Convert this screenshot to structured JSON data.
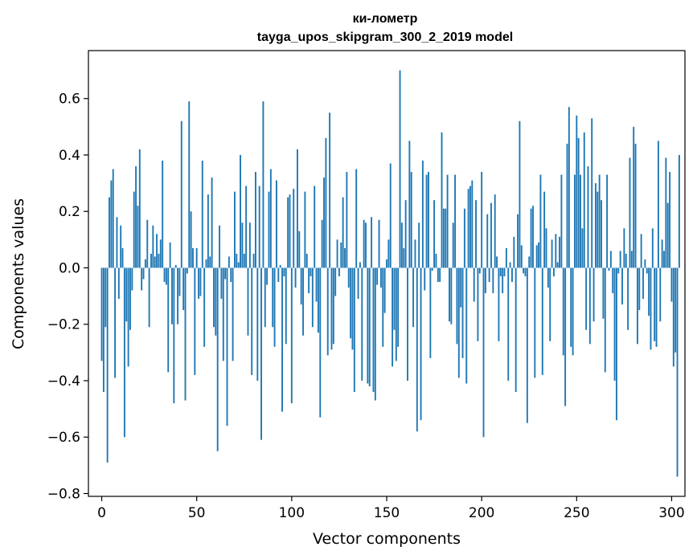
{
  "chart_data": {
    "type": "bar",
    "title": "ки-лометр",
    "subtitle": "tayga_upos_skipgram_300_2_2019 model",
    "xlabel": "Vector components",
    "ylabel": "Components values",
    "xlim": [
      -7,
      307
    ],
    "ylim": [
      -0.81,
      0.77
    ],
    "xticks": [
      0,
      50,
      100,
      150,
      200,
      250,
      300
    ],
    "xtick_labels": [
      "0",
      "50",
      "100",
      "150",
      "200",
      "250",
      "300"
    ],
    "yticks": [
      -0.8,
      -0.6,
      -0.4,
      -0.2,
      0.0,
      0.2,
      0.4,
      0.6
    ],
    "ytick_labels": [
      "−0.8",
      "−0.6",
      "−0.4",
      "−0.2",
      "0.0",
      "0.2",
      "0.4",
      "0.6"
    ],
    "grid": false,
    "color": "#1f77b4",
    "values": [
      -0.33,
      -0.44,
      -0.21,
      -0.69,
      0.25,
      0.31,
      0.35,
      -0.39,
      0.18,
      -0.11,
      0.15,
      0.07,
      -0.6,
      -0.19,
      -0.35,
      -0.22,
      -0.08,
      0.27,
      0.36,
      0.22,
      0.42,
      -0.08,
      -0.04,
      0.03,
      0.17,
      -0.21,
      0.05,
      0.15,
      0.04,
      0.12,
      0.05,
      0.1,
      0.38,
      -0.05,
      -0.06,
      -0.37,
      0.09,
      -0.2,
      -0.48,
      0.01,
      -0.2,
      -0.1,
      0.52,
      -0.15,
      -0.47,
      -0.02,
      0.59,
      0.2,
      0.07,
      -0.38,
      0.07,
      -0.11,
      -0.1,
      0.38,
      -0.28,
      0.03,
      0.26,
      0.04,
      0.32,
      -0.21,
      -0.24,
      -0.65,
      0.15,
      -0.11,
      -0.33,
      -0.04,
      -0.56,
      0.04,
      -0.05,
      -0.33,
      0.27,
      0.05,
      0.02,
      0.4,
      0.16,
      0.05,
      0.29,
      -0.24,
      0.16,
      -0.38,
      0.05,
      0.34,
      -0.4,
      0.29,
      -0.61,
      0.59,
      -0.21,
      -0.06,
      0.27,
      0.35,
      -0.21,
      -0.28,
      0.31,
      -0.05,
      0.01,
      -0.51,
      -0.03,
      -0.27,
      0.25,
      0.26,
      -0.48,
      0.28,
      -0.07,
      0.42,
      0.13,
      -0.13,
      -0.24,
      0.27,
      0.05,
      -0.09,
      -0.03,
      -0.21,
      0.29,
      -0.12,
      -0.23,
      -0.53,
      0.17,
      0.32,
      0.46,
      -0.31,
      0.55,
      -0.29,
      -0.27,
      -0.1,
      0.1,
      -0.03,
      0.09,
      0.25,
      0.07,
      0.34,
      -0.07,
      -0.25,
      -0.29,
      -0.44,
      0.35,
      -0.11,
      0.02,
      -0.4,
      0.17,
      0.16,
      -0.41,
      -0.42,
      0.18,
      -0.44,
      -0.47,
      -0.06,
      0.17,
      -0.07,
      -0.28,
      -0.16,
      0.03,
      0.1,
      0.37,
      -0.35,
      -0.22,
      -0.33,
      -0.28,
      0.7,
      0.16,
      0.07,
      0.24,
      -0.4,
      0.45,
      0.34,
      -0.21,
      0.1,
      -0.58,
      0.16,
      -0.54,
      0.38,
      -0.08,
      0.33,
      0.34,
      -0.32,
      -0.01,
      0.24,
      0.05,
      -0.05,
      -0.05,
      0.48,
      0.21,
      0.21,
      0.33,
      -0.19,
      -0.2,
      0.16,
      0.33,
      -0.27,
      -0.39,
      -0.14,
      -0.32,
      0.21,
      -0.41,
      0.28,
      0.29,
      0.31,
      -0.12,
      0.24,
      -0.26,
      -0.02,
      0.34,
      -0.6,
      -0.09,
      0.19,
      -0.05,
      0.23,
      -0.09,
      0.26,
      0.04,
      -0.26,
      -0.03,
      -0.09,
      -0.03,
      0.07,
      -0.4,
      0.02,
      -0.05,
      0.11,
      -0.44,
      0.19,
      0.52,
      0.08,
      -0.02,
      -0.03,
      -0.55,
      0.04,
      0.21,
      0.22,
      -0.39,
      0.08,
      0.09,
      0.33,
      -0.38,
      0.27,
      0.14,
      -0.07,
      -0.26,
      0.1,
      -0.03,
      0.12,
      0.02,
      0.11,
      0.33,
      -0.31,
      -0.49,
      0.44,
      0.57,
      -0.28,
      -0.31,
      0.33,
      0.54,
      0.46,
      0.33,
      0.14,
      0.48,
      -0.22,
      0.36,
      -0.27,
      0.53,
      -0.19,
      0.3,
      0.27,
      0.33,
      0.24,
      -0.18,
      -0.37,
      0.33,
      -0.01,
      0.06,
      -0.09,
      -0.4,
      -0.54,
      -0.02,
      0.06,
      -0.13,
      0.14,
      0.05,
      -0.22,
      0.39,
      0.06,
      0.5,
      0.44,
      -0.27,
      -0.15,
      0.12,
      -0.11,
      0.03,
      -0.02,
      -0.17,
      -0.29,
      0.14,
      -0.26,
      -0.28,
      0.45,
      -0.19,
      0.1,
      0.06,
      0.39,
      0.23,
      0.34,
      -0.12,
      -0.35,
      -0.3,
      -0.74,
      0.4
    ]
  }
}
